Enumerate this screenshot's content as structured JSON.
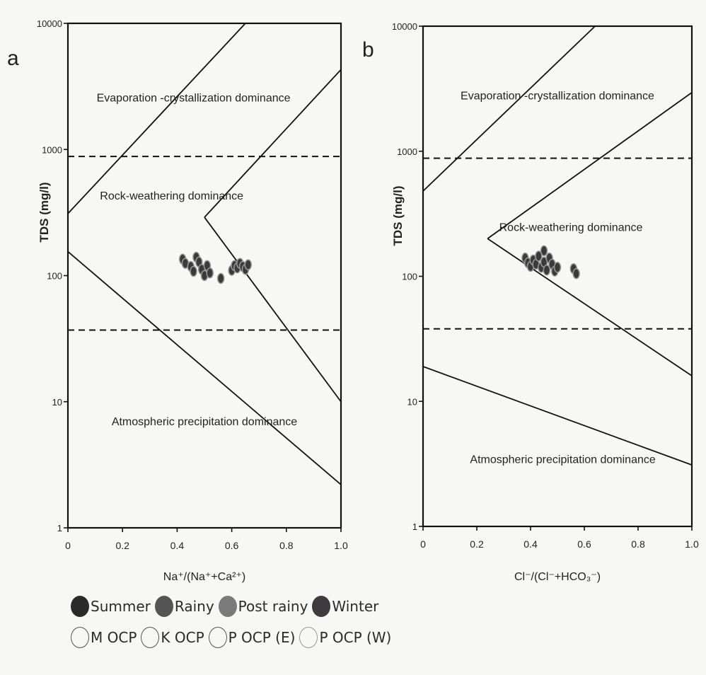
{
  "chart_data": [
    {
      "type": "scatter",
      "panel_letter": "a",
      "xlabel": "Na⁺/(Na⁺+Ca²⁺)",
      "ylabel": "TDS (mg/l)",
      "xlim": [
        0,
        1.0
      ],
      "ylim": [
        1,
        10000
      ],
      "y_scale": "log",
      "x_ticks": [
        "0",
        "0.2",
        "0.4",
        "0.6",
        "0.8",
        "1.0"
      ],
      "y_ticks": [
        "1",
        "10",
        "100",
        "1000",
        "10000"
      ],
      "region_labels": [
        {
          "text": "Evaporation -crystallization dominance",
          "x": 0.46,
          "y": 2400
        },
        {
          "text": "Rock-weathering dominance",
          "x": 0.38,
          "y": 400
        },
        {
          "text": "Atmospheric precipitation dominance",
          "x": 0.5,
          "y": 6.5
        }
      ],
      "boundary_lines": [
        [
          [
            0,
            310
          ],
          [
            0.65,
            10000
          ]
        ],
        [
          [
            0,
            155
          ],
          [
            1.0,
            2.2
          ]
        ],
        [
          [
            0.5,
            290
          ],
          [
            1.0,
            4300
          ]
        ],
        [
          [
            0.5,
            290
          ],
          [
            1.0,
            10
          ]
        ]
      ],
      "reference_lines_dashed": [
        880,
        37
      ],
      "points": [
        [
          0.42,
          135
        ],
        [
          0.43,
          125
        ],
        [
          0.45,
          118
        ],
        [
          0.47,
          140
        ],
        [
          0.48,
          128
        ],
        [
          0.46,
          108
        ],
        [
          0.49,
          112
        ],
        [
          0.5,
          100
        ],
        [
          0.51,
          120
        ],
        [
          0.52,
          105
        ],
        [
          0.56,
          95
        ],
        [
          0.6,
          110
        ],
        [
          0.61,
          120
        ],
        [
          0.62,
          115
        ],
        [
          0.63,
          125
        ],
        [
          0.64,
          118
        ],
        [
          0.65,
          112
        ],
        [
          0.66,
          122
        ]
      ]
    },
    {
      "type": "scatter",
      "panel_letter": "b",
      "xlabel": "Cl⁻/(Cl⁻+HCO₃⁻)",
      "ylabel": "TDS (mg/l)",
      "xlim": [
        0,
        1.0
      ],
      "ylim": [
        1,
        10000
      ],
      "y_scale": "log",
      "x_ticks": [
        "0",
        "0.2",
        "0.4",
        "0.6",
        "0.8",
        "1.0"
      ],
      "y_ticks": [
        "1",
        "10",
        "100",
        "1000",
        "10000"
      ],
      "region_labels": [
        {
          "text": "Evaporation -crystallization dominance",
          "x": 0.5,
          "y": 2600
        },
        {
          "text": "Rock-weathering dominance",
          "x": 0.55,
          "y": 230
        },
        {
          "text": "Atmospheric precipitation dominance",
          "x": 0.52,
          "y": 3.2
        }
      ],
      "boundary_lines": [
        [
          [
            0,
            480
          ],
          [
            0.64,
            10000
          ]
        ],
        [
          [
            0.24,
            200
          ],
          [
            1.0,
            2950
          ]
        ],
        [
          [
            0.24,
            200
          ],
          [
            1.0,
            16
          ]
        ],
        [
          [
            0,
            19
          ],
          [
            1.0,
            3.1
          ]
        ]
      ],
      "reference_lines_dashed": [
        880,
        38
      ],
      "points": [
        [
          0.38,
          140
        ],
        [
          0.39,
          128
        ],
        [
          0.4,
          120
        ],
        [
          0.41,
          135
        ],
        [
          0.42,
          125
        ],
        [
          0.43,
          145
        ],
        [
          0.44,
          118
        ],
        [
          0.45,
          160
        ],
        [
          0.45,
          130
        ],
        [
          0.46,
          112
        ],
        [
          0.47,
          140
        ],
        [
          0.48,
          125
        ],
        [
          0.49,
          110
        ],
        [
          0.5,
          118
        ],
        [
          0.56,
          115
        ],
        [
          0.57,
          105
        ]
      ]
    }
  ],
  "legend": {
    "seasons": [
      {
        "label": "Summer",
        "color": "#2a2a2a"
      },
      {
        "label": "Rainy",
        "color": "#555555"
      },
      {
        "label": "Post rainy",
        "color": "#7a7a7a"
      },
      {
        "label": "Winter",
        "color": "#3e3a40"
      }
    ],
    "locations": [
      {
        "label": "M OCP"
      },
      {
        "label": "K OCP"
      },
      {
        "label": "P OCP (E)"
      },
      {
        "label": "P OCP (W)"
      }
    ]
  }
}
